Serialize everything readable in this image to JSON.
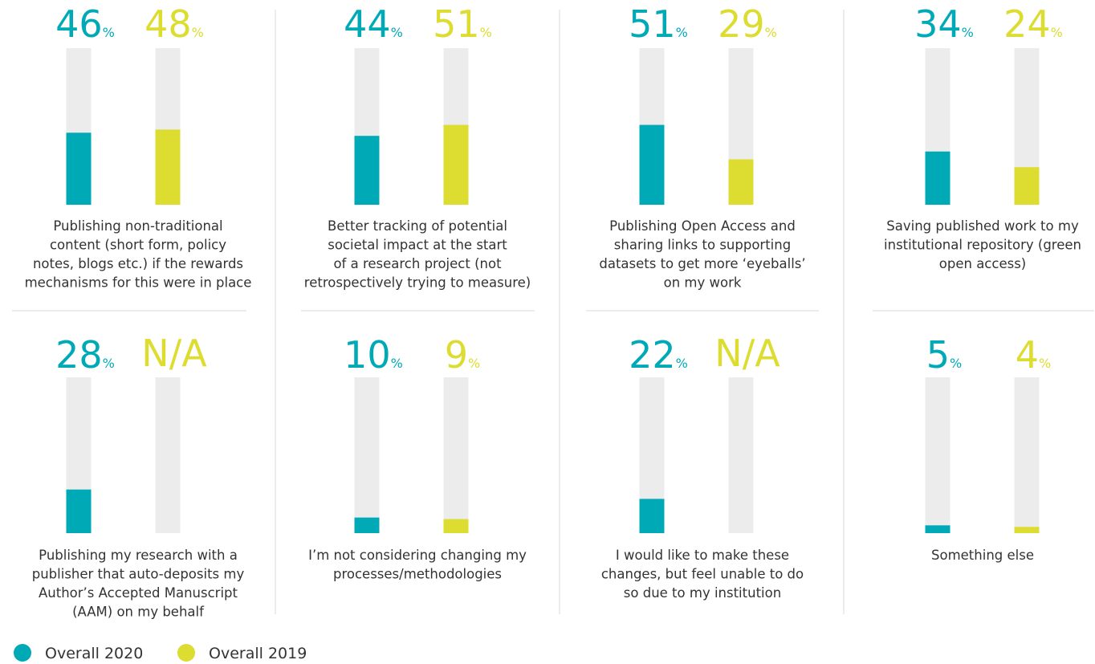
{
  "chart_data": [
    {
      "type": "bar",
      "title": [
        "Publishing non-traditional",
        "content (short form, policy",
        "notes, blogs etc.) if the rewards",
        "mechanisms for this were in place"
      ],
      "ylim": [
        0,
        100
      ],
      "series": [
        {
          "name": "Overall 2020",
          "color": "#00a9b6",
          "values": [
            46
          ],
          "value_labels": [
            "46%"
          ]
        },
        {
          "name": "Overall 2019",
          "color": "#dcdc31",
          "values": [
            48
          ],
          "value_labels": [
            "48%"
          ]
        }
      ]
    },
    {
      "type": "bar",
      "title": [
        "Better tracking of potential",
        "societal impact at the start",
        "of a research project (not",
        "retrospectively trying to measure)"
      ],
      "ylim": [
        0,
        100
      ],
      "series": [
        {
          "name": "Overall 2020",
          "color": "#00a9b6",
          "values": [
            44
          ],
          "value_labels": [
            "44%"
          ]
        },
        {
          "name": "Overall 2019",
          "color": "#dcdc31",
          "values": [
            51
          ],
          "value_labels": [
            "51%"
          ]
        }
      ]
    },
    {
      "type": "bar",
      "title": [
        "Publishing Open Access and",
        "sharing links to supporting",
        "datasets to get more ‘eyeballs’",
        "on my work"
      ],
      "ylim": [
        0,
        100
      ],
      "series": [
        {
          "name": "Overall 2020",
          "color": "#00a9b6",
          "values": [
            51
          ],
          "value_labels": [
            "51%"
          ]
        },
        {
          "name": "Overall 2019",
          "color": "#dcdc31",
          "values": [
            29
          ],
          "value_labels": [
            "29%"
          ]
        }
      ]
    },
    {
      "type": "bar",
      "title": [
        "Saving published work to my",
        "institutional repository (green",
        "open access)"
      ],
      "ylim": [
        0,
        100
      ],
      "series": [
        {
          "name": "Overall 2020",
          "color": "#00a9b6",
          "values": [
            34
          ],
          "value_labels": [
            "34%"
          ]
        },
        {
          "name": "Overall 2019",
          "color": "#dcdc31",
          "values": [
            24
          ],
          "value_labels": [
            "24%"
          ]
        }
      ]
    },
    {
      "type": "bar",
      "title": [
        "Publishing my research with a",
        "publisher that auto-deposits my",
        "Author’s Accepted Manuscript",
        "(AAM) on my behalf"
      ],
      "ylim": [
        0,
        100
      ],
      "series": [
        {
          "name": "Overall 2020",
          "color": "#00a9b6",
          "values": [
            28
          ],
          "value_labels": [
            "28%"
          ]
        },
        {
          "name": "Overall 2019",
          "color": "#dcdc31",
          "values": [
            null
          ],
          "value_labels": [
            "N/A"
          ]
        }
      ]
    },
    {
      "type": "bar",
      "title": [
        "I’m not considering changing my",
        "processes/methodologies"
      ],
      "ylim": [
        0,
        100
      ],
      "series": [
        {
          "name": "Overall 2020",
          "color": "#00a9b6",
          "values": [
            10
          ],
          "value_labels": [
            "10%"
          ]
        },
        {
          "name": "Overall 2019",
          "color": "#dcdc31",
          "values": [
            9
          ],
          "value_labels": [
            "9%"
          ]
        }
      ]
    },
    {
      "type": "bar",
      "title": [
        "I would like to make these",
        "changes, but feel unable to do",
        "so due to my institution"
      ],
      "ylim": [
        0,
        100
      ],
      "series": [
        {
          "name": "Overall 2020",
          "color": "#00a9b6",
          "values": [
            22
          ],
          "value_labels": [
            "22%"
          ]
        },
        {
          "name": "Overall 2019",
          "color": "#dcdc31",
          "values": [
            null
          ],
          "value_labels": [
            "N/A"
          ]
        }
      ]
    },
    {
      "type": "bar",
      "title": [
        "Something else"
      ],
      "ylim": [
        0,
        100
      ],
      "series": [
        {
          "name": "Overall 2020",
          "color": "#00a9b6",
          "values": [
            5
          ],
          "value_labels": [
            "5%"
          ]
        },
        {
          "name": "Overall 2019",
          "color": "#dcdc31",
          "values": [
            4
          ],
          "value_labels": [
            "4%"
          ]
        }
      ]
    }
  ]
}
